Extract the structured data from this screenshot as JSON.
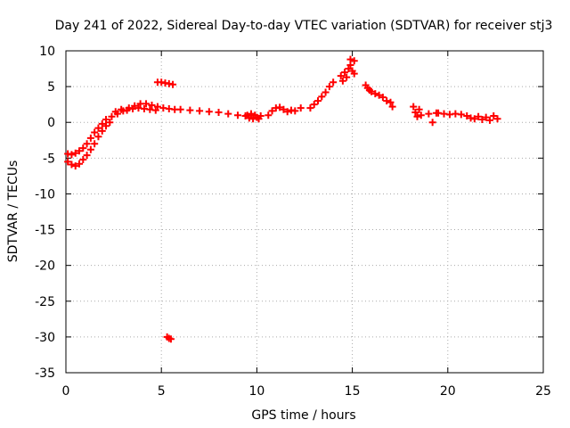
{
  "chart_data": {
    "type": "scatter",
    "title": "Day 241 of 2022, Sidereal Day-to-day VTEC variation (SDTVAR) for receiver stj3",
    "xlabel": "GPS time / hours",
    "ylabel": "SDTVAR / TECUs",
    "xlim": [
      0,
      25
    ],
    "ylim": [
      -35,
      10
    ],
    "xticks": [
      0,
      5,
      10,
      15,
      20,
      25
    ],
    "yticks": [
      10,
      5,
      0,
      -5,
      -10,
      -15,
      -20,
      -25,
      -30,
      -35
    ],
    "grid": true,
    "legend": "none",
    "marker": "+",
    "color": "#ff0000",
    "segments": [
      {
        "name": "lower-trace-start",
        "points": [
          [
            0.1,
            -5.5
          ],
          [
            0.3,
            -5.9
          ],
          [
            0.5,
            -6.1
          ],
          [
            0.7,
            -5.8
          ],
          [
            0.9,
            -5.2
          ],
          [
            1.1,
            -4.6
          ],
          [
            1.3,
            -3.8
          ],
          [
            1.5,
            -3.0
          ],
          [
            1.7,
            -2.0
          ],
          [
            1.9,
            -1.2
          ],
          [
            2.1,
            -0.5
          ],
          [
            2.3,
            0.0
          ]
        ]
      },
      {
        "name": "upper-trace-start",
        "points": [
          [
            0.1,
            -4.4
          ],
          [
            0.3,
            -4.5
          ],
          [
            0.5,
            -4.3
          ],
          [
            0.7,
            -4.0
          ],
          [
            0.9,
            -3.6
          ],
          [
            1.1,
            -3.0
          ],
          [
            1.3,
            -2.2
          ],
          [
            1.5,
            -1.4
          ],
          [
            1.7,
            -0.8
          ],
          [
            1.9,
            -0.2
          ],
          [
            2.1,
            0.4
          ],
          [
            2.4,
            0.8
          ],
          [
            2.7,
            1.2
          ],
          [
            3.0,
            1.6
          ],
          [
            3.3,
            2.0
          ],
          [
            3.6,
            2.3
          ],
          [
            3.9,
            2.6
          ],
          [
            4.2,
            2.6
          ],
          [
            4.5,
            2.4
          ],
          [
            4.8,
            2.2
          ],
          [
            5.1,
            2.0
          ],
          [
            5.4,
            1.9
          ],
          [
            5.7,
            1.8
          ]
        ]
      },
      {
        "name": "hump-lower",
        "points": [
          [
            2.6,
            1.5
          ],
          [
            2.9,
            1.8
          ],
          [
            3.2,
            1.7
          ],
          [
            3.5,
            1.9
          ],
          [
            3.8,
            2.0
          ],
          [
            4.1,
            1.9
          ],
          [
            4.4,
            1.8
          ],
          [
            4.7,
            1.7
          ]
        ]
      },
      {
        "name": "offset-cluster",
        "points": [
          [
            4.8,
            5.6
          ],
          [
            5.0,
            5.6
          ],
          [
            5.2,
            5.5
          ],
          [
            5.4,
            5.4
          ],
          [
            5.6,
            5.3
          ]
        ]
      },
      {
        "name": "midday",
        "points": [
          [
            6.0,
            1.8
          ],
          [
            6.5,
            1.7
          ],
          [
            7.0,
            1.6
          ],
          [
            7.5,
            1.5
          ],
          [
            8.0,
            1.4
          ],
          [
            8.5,
            1.2
          ],
          [
            9.0,
            1.0
          ],
          [
            9.4,
            0.9
          ]
        ]
      },
      {
        "name": "around-ten",
        "points": [
          [
            9.5,
            1.0
          ],
          [
            9.6,
            0.6
          ],
          [
            9.7,
            1.2
          ],
          [
            9.8,
            0.5
          ],
          [
            9.9,
            1.0
          ],
          [
            10.0,
            0.7
          ],
          [
            10.1,
            0.5
          ],
          [
            10.2,
            0.9
          ]
        ]
      },
      {
        "name": "afternoon",
        "points": [
          [
            10.6,
            1.0
          ],
          [
            10.8,
            1.6
          ],
          [
            11.0,
            2.0
          ],
          [
            11.2,
            2.1
          ],
          [
            11.4,
            1.8
          ],
          [
            11.6,
            1.5
          ],
          [
            11.8,
            1.7
          ],
          [
            12.0,
            1.6
          ],
          [
            12.3,
            2.0
          ]
        ]
      },
      {
        "name": "rise",
        "points": [
          [
            12.8,
            2.0
          ],
          [
            13.0,
            2.5
          ],
          [
            13.2,
            3.0
          ],
          [
            13.4,
            3.6
          ],
          [
            13.6,
            4.2
          ],
          [
            13.8,
            5.0
          ],
          [
            14.0,
            5.6
          ]
        ]
      },
      {
        "name": "peak",
        "points": [
          [
            14.4,
            6.5
          ],
          [
            14.5,
            5.8
          ],
          [
            14.6,
            7.0
          ],
          [
            14.7,
            6.3
          ],
          [
            14.8,
            7.5
          ],
          [
            14.9,
            8.0
          ],
          [
            15.0,
            7.2
          ],
          [
            15.1,
            6.8
          ],
          [
            14.9,
            8.8
          ],
          [
            15.1,
            8.6
          ]
        ]
      },
      {
        "name": "decline",
        "points": [
          [
            15.7,
            5.2
          ],
          [
            15.8,
            4.8
          ],
          [
            15.9,
            4.5
          ],
          [
            16.0,
            4.3
          ],
          [
            16.2,
            4.0
          ],
          [
            16.4,
            3.8
          ],
          [
            16.6,
            3.5
          ],
          [
            16.8,
            3.0
          ],
          [
            17.0,
            2.8
          ],
          [
            17.1,
            2.2
          ]
        ]
      },
      {
        "name": "night-cluster-a",
        "points": [
          [
            18.2,
            2.2
          ],
          [
            18.3,
            1.4
          ],
          [
            18.4,
            0.8
          ],
          [
            18.5,
            1.8
          ],
          [
            18.6,
            1.0
          ],
          [
            19.0,
            1.2
          ],
          [
            19.2,
            0.0
          ],
          [
            19.4,
            1.3
          ]
        ]
      },
      {
        "name": "night-cluster-b",
        "points": [
          [
            19.5,
            1.3
          ],
          [
            19.8,
            1.2
          ],
          [
            20.1,
            1.1
          ],
          [
            20.4,
            1.2
          ],
          [
            20.7,
            1.1
          ],
          [
            21.0,
            0.9
          ]
        ]
      },
      {
        "name": "end",
        "points": [
          [
            21.2,
            0.6
          ],
          [
            21.4,
            0.5
          ],
          [
            21.6,
            0.8
          ],
          [
            21.8,
            0.4
          ],
          [
            22.0,
            0.7
          ],
          [
            22.2,
            0.3
          ],
          [
            22.4,
            0.9
          ],
          [
            22.6,
            0.5
          ]
        ]
      },
      {
        "name": "outlier",
        "points": [
          [
            5.3,
            -30.0
          ],
          [
            5.4,
            -30.2
          ],
          [
            5.5,
            -30.3
          ]
        ]
      }
    ]
  }
}
